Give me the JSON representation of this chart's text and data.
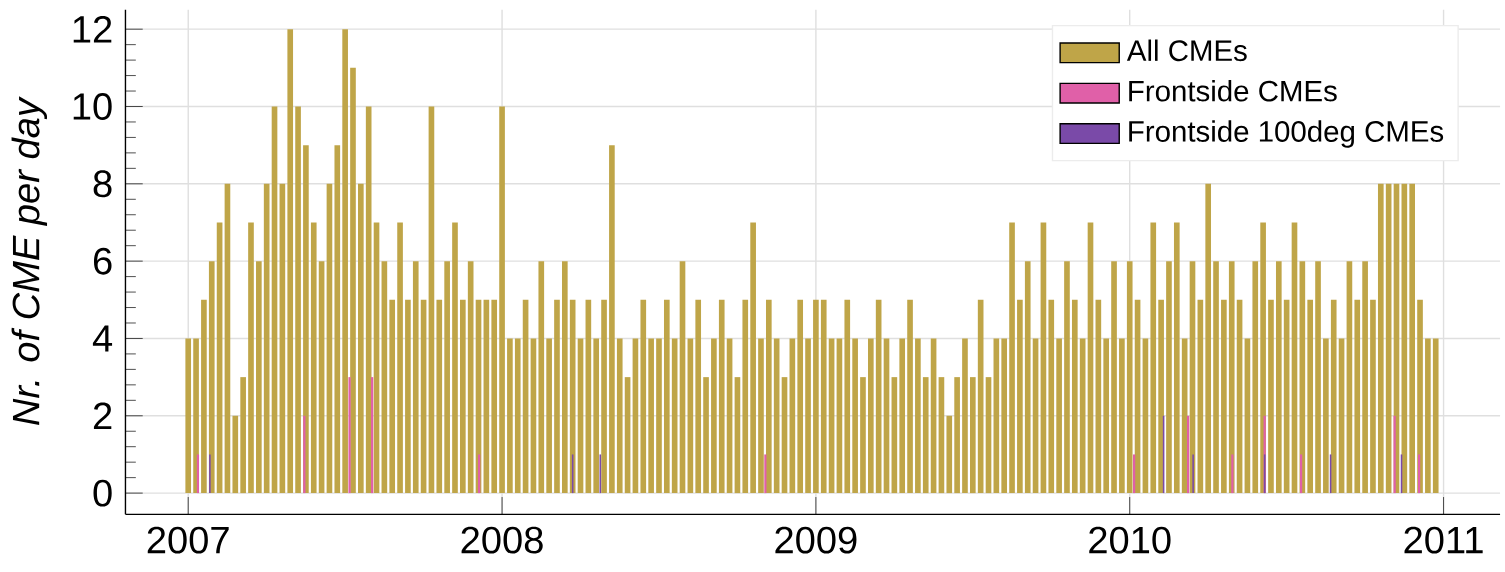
{
  "chart_data": {
    "type": "bar",
    "ylabel": "Nr. of CME per day",
    "xlim": [
      2006.8,
      2011.18
    ],
    "xticks": [
      2007,
      2008,
      2009,
      2010,
      2011
    ],
    "ylim": [
      -0.55,
      12.5
    ],
    "yticks": [
      0,
      2,
      4,
      6,
      8,
      10,
      12
    ],
    "grid": true,
    "legend": "top right",
    "series": [
      {
        "name": "All CMEs",
        "color": "#bfa548",
        "x": [
          2007.0,
          2007.025,
          2007.05,
          2007.075,
          2007.1,
          2007.125,
          2007.15,
          2007.175,
          2007.2,
          2007.225,
          2007.25,
          2007.275,
          2007.3,
          2007.325,
          2007.35,
          2007.375,
          2007.4,
          2007.425,
          2007.45,
          2007.475,
          2007.5,
          2007.525,
          2007.55,
          2007.575,
          2007.6,
          2007.625,
          2007.65,
          2007.675,
          2007.7,
          2007.725,
          2007.75,
          2007.775,
          2007.8,
          2007.825,
          2007.85,
          2007.875,
          2007.9,
          2007.925,
          2007.95,
          2007.975,
          2008.0,
          2008.025,
          2008.05,
          2008.075,
          2008.1,
          2008.125,
          2008.15,
          2008.175,
          2008.2,
          2008.225,
          2008.25,
          2008.275,
          2008.3,
          2008.325,
          2008.35,
          2008.375,
          2008.4,
          2008.425,
          2008.45,
          2008.475,
          2008.5,
          2008.525,
          2008.55,
          2008.575,
          2008.6,
          2008.625,
          2008.65,
          2008.675,
          2008.7,
          2008.725,
          2008.75,
          2008.775,
          2008.8,
          2008.825,
          2008.85,
          2008.875,
          2008.9,
          2008.925,
          2008.95,
          2008.975,
          2009.0,
          2009.025,
          2009.05,
          2009.075,
          2009.1,
          2009.125,
          2009.15,
          2009.175,
          2009.2,
          2009.225,
          2009.25,
          2009.275,
          2009.3,
          2009.325,
          2009.35,
          2009.375,
          2009.4,
          2009.425,
          2009.45,
          2009.475,
          2009.5,
          2009.525,
          2009.55,
          2009.575,
          2009.6,
          2009.625,
          2009.65,
          2009.675,
          2009.7,
          2009.725,
          2009.75,
          2009.775,
          2009.8,
          2009.825,
          2009.85,
          2009.875,
          2009.9,
          2009.925,
          2009.95,
          2009.975,
          2010.0,
          2010.025,
          2010.05,
          2010.075,
          2010.1,
          2010.125,
          2010.15,
          2010.175,
          2010.2,
          2010.225,
          2010.25,
          2010.275,
          2010.3,
          2010.325,
          2010.35,
          2010.375,
          2010.4,
          2010.425,
          2010.45,
          2010.475,
          2010.5,
          2010.525,
          2010.55,
          2010.575,
          2010.6,
          2010.625,
          2010.65,
          2010.675,
          2010.7,
          2010.725,
          2010.75,
          2010.775,
          2010.8,
          2010.825,
          2010.85,
          2010.875,
          2010.9,
          2010.925,
          2010.95,
          2010.975
        ],
        "values": [
          4,
          4,
          5,
          6,
          7,
          8,
          2,
          3,
          7,
          6,
          8,
          10,
          8,
          12,
          10,
          9,
          7,
          6,
          8,
          9,
          12,
          11,
          8,
          10,
          7,
          6,
          5,
          7,
          5,
          6,
          5,
          10,
          5,
          6,
          7,
          5,
          6,
          5,
          5,
          5,
          10,
          4,
          4,
          5,
          4,
          6,
          4,
          5,
          6,
          5,
          4,
          5,
          4,
          5,
          9,
          4,
          3,
          4,
          5,
          4,
          4,
          5,
          4,
          6,
          4,
          5,
          3,
          4,
          5,
          4,
          3,
          5,
          7,
          4,
          5,
          4,
          3,
          4,
          5,
          4,
          5,
          5,
          4,
          4,
          5,
          4,
          3,
          4,
          5,
          4,
          3,
          4,
          5,
          4,
          3,
          4,
          3,
          2,
          3,
          4,
          3,
          5,
          3,
          4,
          4,
          7,
          5,
          6,
          4,
          7,
          5,
          4,
          6,
          5,
          4,
          7,
          5,
          4,
          6,
          4,
          6,
          5,
          4,
          7,
          5,
          6,
          7,
          4,
          6,
          5,
          8,
          6,
          5,
          6,
          5,
          4,
          6,
          7,
          5,
          6,
          5,
          7,
          6,
          5,
          6,
          4,
          5,
          4,
          6,
          5,
          6,
          5,
          8,
          8,
          8,
          8,
          8,
          5,
          4,
          4
        ]
      },
      {
        "name": "Frontside CMEs",
        "color": "#e060a8",
        "x": [
          2007.031,
          2007.37,
          2007.514,
          2007.586,
          2007.927,
          2008.839,
          2010.014,
          2010.186,
          2010.327,
          2010.43,
          2010.546,
          2010.844,
          2010.922
        ],
        "values": [
          1,
          2,
          3,
          3,
          1,
          1,
          1,
          2,
          1,
          2,
          1,
          2,
          1
        ]
      },
      {
        "name": "Frontside 100deg CMEs",
        "color": "#7a4aa8",
        "x": [
          2007.069,
          2008.225,
          2008.313,
          2010.108,
          2010.202,
          2010.43,
          2010.64,
          2010.866
        ],
        "values": [
          1,
          1,
          1,
          2,
          1,
          1,
          1,
          1
        ]
      }
    ]
  }
}
